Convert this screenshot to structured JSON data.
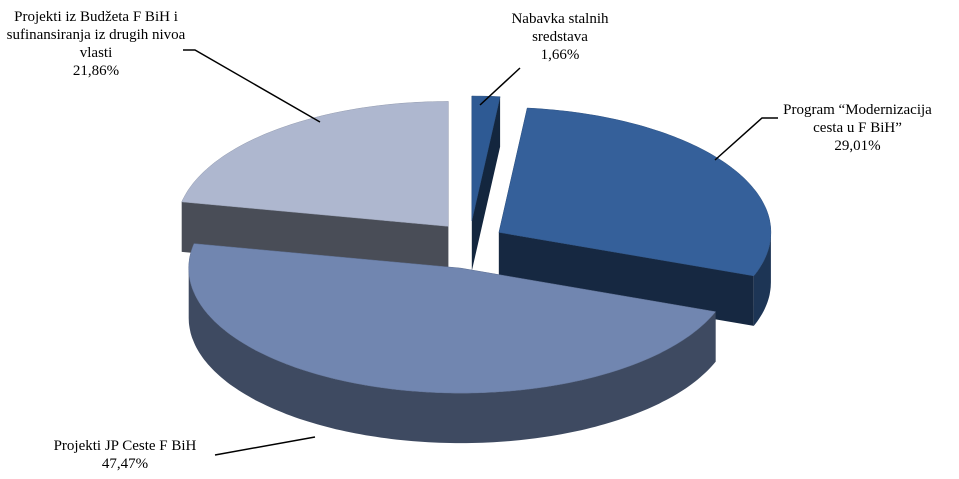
{
  "chart_data": {
    "type": "pie",
    "categories": [
      "Nabavka stalnih sredstava",
      "Program “Modernizacija cesta u F BiH”",
      "Projekti JP Ceste F BiH",
      "Projekti iz Budžeta F BiH i sufinansiranja iz drugih nivoa vlasti"
    ],
    "values": [
      1.66,
      29.01,
      47.47,
      21.86
    ],
    "value_labels": [
      "1,66%",
      "29,01%",
      "47,47%",
      "21,86%"
    ],
    "colors": [
      "#2e5a94",
      "#35609a",
      "#7186b0",
      "#aeb7cf"
    ]
  }
}
